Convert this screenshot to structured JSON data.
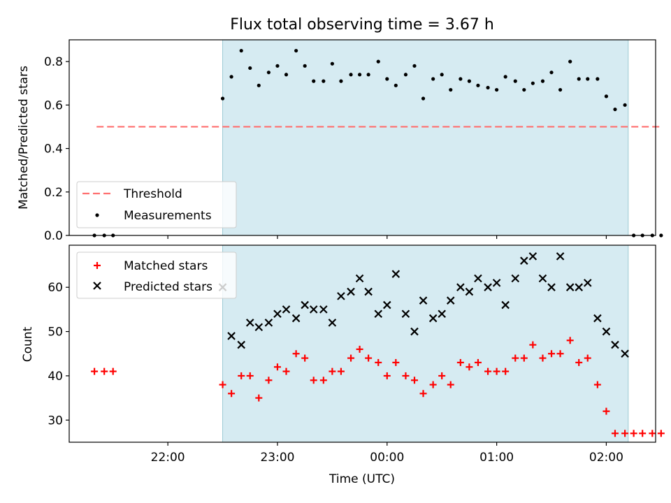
{
  "chart_data": [
    {
      "type": "scatter",
      "title": "Flux total observing time = 3.67 h",
      "xlabel": "",
      "ylabel": "Matched/Predicted stars",
      "ylim": [
        0,
        0.9
      ],
      "xlim": [
        -2.9,
        2.45
      ],
      "yticks": [
        0.0,
        0.2,
        0.4,
        0.6,
        0.8
      ],
      "yticklabels": [
        "0.0",
        "0.2",
        "0.4",
        "0.6",
        "0.8"
      ],
      "grid": false,
      "legend_position": "lower-left",
      "shaded_interval": {
        "x": [
          -1.5,
          2.2
        ],
        "color": "#add8e6"
      },
      "series": [
        {
          "name": "Threshold",
          "kind": "dashed-line",
          "color": "#ff7070",
          "x": [
            -2.65,
            2.5
          ],
          "y": [
            0.5,
            0.5
          ]
        },
        {
          "name": "Measurements",
          "kind": "points",
          "color": "#000000",
          "x": [
            -2.67,
            -2.58,
            -2.5,
            -1.5,
            -1.42,
            -1.33,
            -1.25,
            -1.17,
            -1.08,
            -1.0,
            -0.92,
            -0.83,
            -0.75,
            -0.67,
            -0.58,
            -0.5,
            -0.42,
            -0.33,
            -0.25,
            -0.17,
            -0.08,
            0.0,
            0.08,
            0.17,
            0.25,
            0.33,
            0.42,
            0.5,
            0.58,
            0.67,
            0.75,
            0.83,
            0.92,
            1.0,
            1.08,
            1.17,
            1.25,
            1.33,
            1.42,
            1.5,
            1.58,
            1.67,
            1.75,
            1.83,
            1.92,
            2.0,
            2.08,
            2.17,
            2.25,
            2.33,
            2.42,
            2.5
          ],
          "y": [
            0,
            0,
            0,
            0.63,
            0.73,
            0.85,
            0.77,
            0.69,
            0.75,
            0.78,
            0.74,
            0.85,
            0.78,
            0.71,
            0.71,
            0.79,
            0.71,
            0.74,
            0.74,
            0.74,
            0.8,
            0.72,
            0.69,
            0.74,
            0.78,
            0.63,
            0.72,
            0.74,
            0.67,
            0.72,
            0.71,
            0.69,
            0.68,
            0.67,
            0.73,
            0.71,
            0.67,
            0.7,
            0.71,
            0.75,
            0.67,
            0.8,
            0.72,
            0.72,
            0.72,
            0.64,
            0.58,
            0.6,
            0,
            0,
            0,
            0
          ]
        }
      ]
    },
    {
      "type": "scatter",
      "title": "",
      "xlabel": "Time (UTC)",
      "ylabel": "Count",
      "ylim": [
        25,
        69.5
      ],
      "xlim": [
        -2.9,
        2.45
      ],
      "yticks": [
        30,
        40,
        50,
        60
      ],
      "yticklabels": [
        "30",
        "40",
        "50",
        "60"
      ],
      "xticks": [
        -2.0,
        -1.0,
        0.0,
        1.0,
        2.0
      ],
      "xticklabels": [
        "22:00",
        "23:00",
        "00:00",
        "01:00",
        "02:00"
      ],
      "grid": false,
      "legend_position": "upper-left",
      "shaded_interval": {
        "x": [
          -1.5,
          2.2
        ],
        "color": "#add8e6"
      },
      "series": [
        {
          "name": "Matched stars",
          "marker": "plus",
          "color": "#ff0000",
          "x": [
            -2.67,
            -2.58,
            -2.5,
            -1.5,
            -1.42,
            -1.33,
            -1.25,
            -1.17,
            -1.08,
            -1.0,
            -0.92,
            -0.83,
            -0.75,
            -0.67,
            -0.58,
            -0.5,
            -0.42,
            -0.33,
            -0.25,
            -0.17,
            -0.08,
            0.0,
            0.08,
            0.17,
            0.25,
            0.33,
            0.42,
            0.5,
            0.58,
            0.67,
            0.75,
            0.83,
            0.92,
            1.0,
            1.08,
            1.17,
            1.25,
            1.33,
            1.42,
            1.5,
            1.58,
            1.67,
            1.75,
            1.83,
            1.92,
            2.0,
            2.08,
            2.17,
            2.25,
            2.33,
            2.42,
            2.5
          ],
          "y": [
            41,
            41,
            41,
            38,
            36,
            40,
            40,
            35,
            39,
            42,
            41,
            45,
            44,
            39,
            39,
            41,
            41,
            44,
            46,
            44,
            43,
            40,
            43,
            40,
            39,
            36,
            38,
            40,
            38,
            43,
            42,
            43,
            41,
            41,
            41,
            44,
            44,
            47,
            44,
            45,
            45,
            48,
            43,
            44,
            38,
            32,
            27,
            27,
            27,
            27,
            27,
            27
          ]
        },
        {
          "name": "Predicted stars",
          "marker": "x",
          "color": "#000000",
          "x": [
            -1.5,
            -1.42,
            -1.33,
            -1.25,
            -1.17,
            -1.08,
            -1.0,
            -0.92,
            -0.83,
            -0.75,
            -0.67,
            -0.58,
            -0.5,
            -0.42,
            -0.33,
            -0.25,
            -0.17,
            -0.08,
            0.0,
            0.08,
            0.17,
            0.25,
            0.33,
            0.42,
            0.5,
            0.58,
            0.67,
            0.75,
            0.83,
            0.92,
            1.0,
            1.08,
            1.17,
            1.25,
            1.33,
            1.42,
            1.5,
            1.58,
            1.67,
            1.75,
            1.83,
            1.92,
            2.0,
            2.08,
            2.17
          ],
          "y": [
            60,
            49,
            47,
            52,
            51,
            52,
            54,
            55,
            53,
            56,
            55,
            55,
            52,
            58,
            59,
            62,
            59,
            54,
            56,
            63,
            54,
            50,
            57,
            53,
            54,
            57,
            60,
            59,
            62,
            60,
            61,
            56,
            62,
            66,
            67,
            62,
            60,
            67,
            60,
            60,
            61,
            53,
            50,
            47,
            45
          ]
        }
      ]
    }
  ]
}
